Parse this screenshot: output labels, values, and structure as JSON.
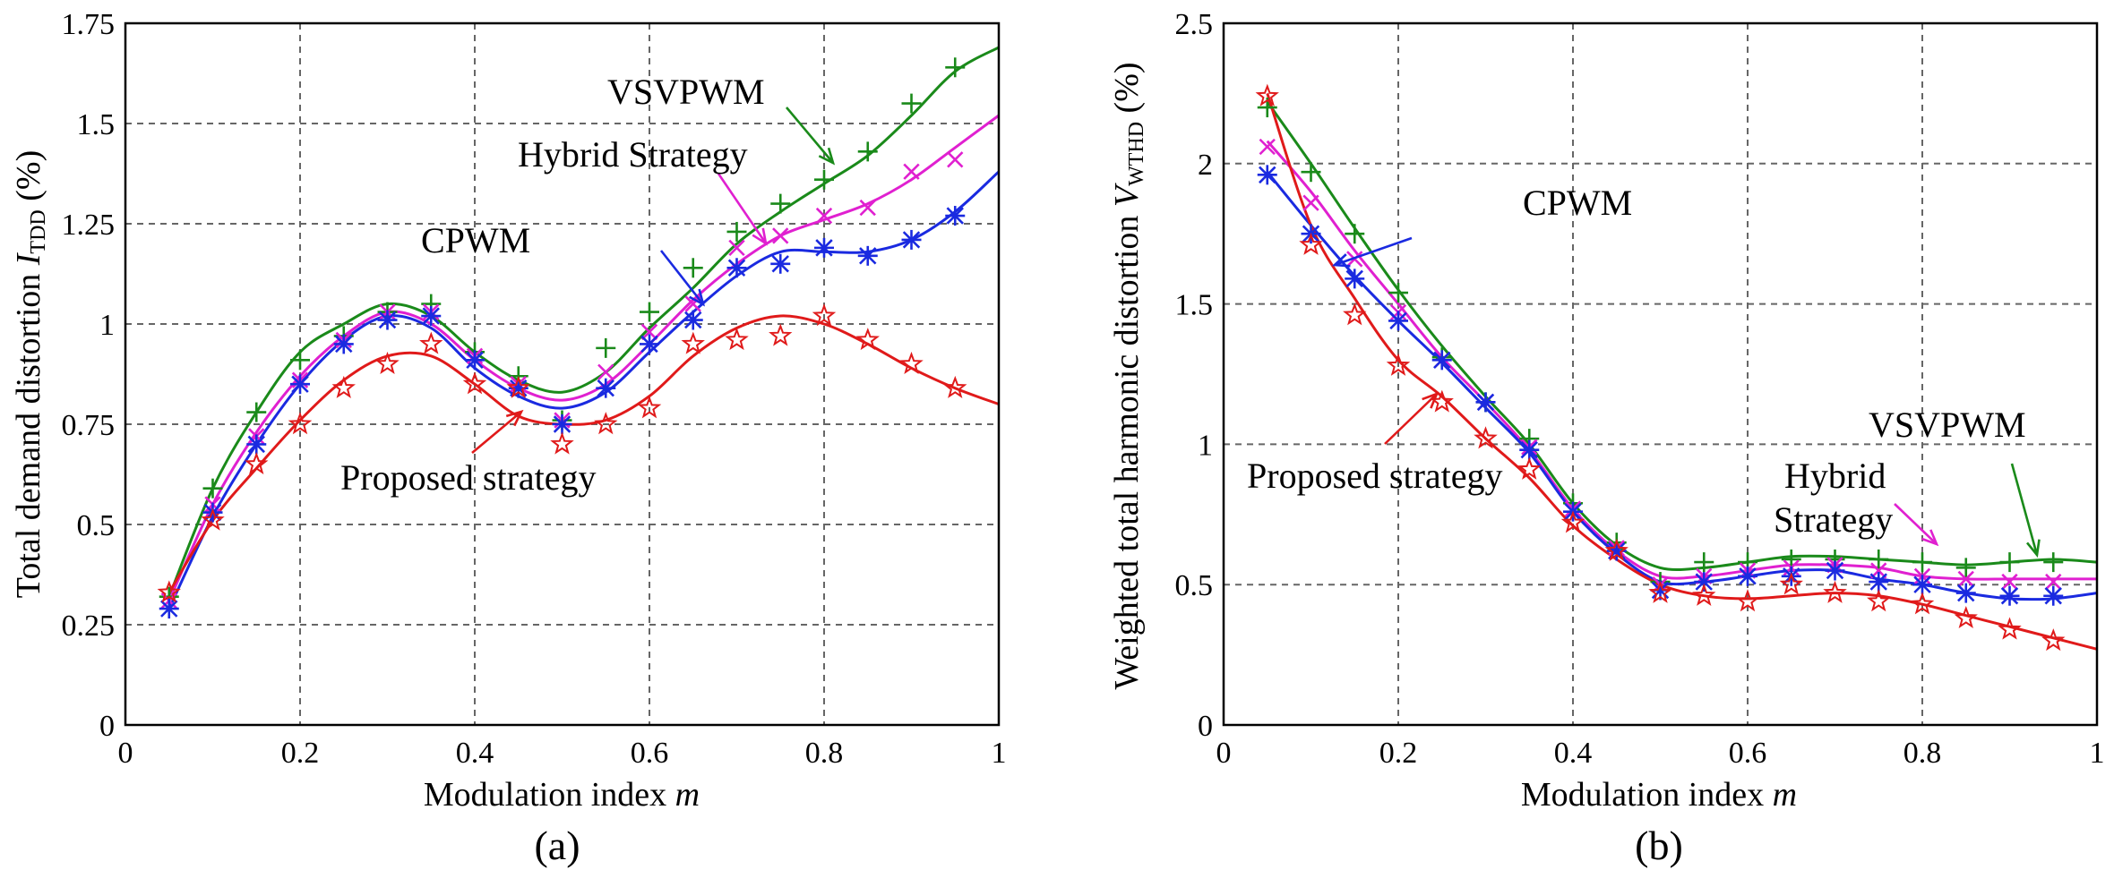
{
  "chart_data": [
    {
      "type": "line",
      "panel_label": "(a)",
      "xlabel_main": "Modulation index ",
      "xlabel_italic": "m",
      "ylabel_main": "Total demand distortion ",
      "ylabel_symbol": "I",
      "ylabel_sub": "TDD",
      "ylabel_unit": " (%)",
      "xlim": [
        0,
        1
      ],
      "ylim": [
        0,
        1.75
      ],
      "xticks": [
        0,
        0.2,
        0.4,
        0.6,
        0.8,
        1
      ],
      "xtick_labels": [
        "0",
        "0.2",
        "0.4",
        "0.6",
        "0.8",
        "1"
      ],
      "yticks": [
        0,
        0.25,
        0.5,
        0.75,
        1,
        1.25,
        1.5,
        1.75
      ],
      "ytick_labels": [
        "0",
        "0.25",
        "0.5",
        "0.75",
        "1",
        "1.25",
        "1.5",
        "1.75"
      ],
      "grid": true,
      "series": [
        {
          "name": "VSVPWM",
          "color": "#1a8a1a",
          "marker": "plus",
          "x": [
            0.05,
            0.1,
            0.15,
            0.2,
            0.25,
            0.3,
            0.35,
            0.4,
            0.45,
            0.5,
            0.55,
            0.6,
            0.65,
            0.7,
            0.75,
            0.8,
            0.85,
            0.9,
            0.95,
            1.0
          ],
          "curve": [
            0.32,
            0.59,
            0.78,
            0.93,
            1.0,
            1.05,
            1.02,
            0.93,
            0.86,
            0.83,
            0.88,
            0.99,
            1.09,
            1.2,
            1.28,
            1.35,
            1.42,
            1.52,
            1.63,
            1.69
          ],
          "markers": [
            0.32,
            0.59,
            0.78,
            0.91,
            0.97,
            1.03,
            1.05,
            0.93,
            0.87,
            0.76,
            0.94,
            1.03,
            1.14,
            1.23,
            1.3,
            1.36,
            1.43,
            1.55,
            1.64
          ]
        },
        {
          "name": "Hybrid Strategy",
          "color": "#e020d0",
          "marker": "x",
          "x": [
            0.05,
            0.1,
            0.15,
            0.2,
            0.25,
            0.3,
            0.35,
            0.4,
            0.45,
            0.5,
            0.55,
            0.6,
            0.65,
            0.7,
            0.75,
            0.8,
            0.85,
            0.9,
            0.95,
            1.0
          ],
          "curve": [
            0.31,
            0.55,
            0.73,
            0.87,
            0.97,
            1.03,
            1.0,
            0.91,
            0.84,
            0.81,
            0.85,
            0.95,
            1.06,
            1.15,
            1.22,
            1.26,
            1.3,
            1.36,
            1.44,
            1.52
          ],
          "markers": [
            0.31,
            0.55,
            0.72,
            0.86,
            0.96,
            1.03,
            1.03,
            0.92,
            0.85,
            0.76,
            0.88,
            0.98,
            1.05,
            1.19,
            1.22,
            1.27,
            1.29,
            1.38,
            1.41
          ]
        },
        {
          "name": "CPWM",
          "color": "#1a2ae0",
          "marker": "asterisk",
          "x": [
            0.05,
            0.1,
            0.15,
            0.2,
            0.25,
            0.3,
            0.35,
            0.4,
            0.45,
            0.5,
            0.55,
            0.6,
            0.65,
            0.7,
            0.75,
            0.8,
            0.85,
            0.9,
            0.95,
            1.0
          ],
          "curve": [
            0.29,
            0.52,
            0.7,
            0.85,
            0.96,
            1.02,
            0.99,
            0.89,
            0.82,
            0.79,
            0.83,
            0.93,
            1.03,
            1.12,
            1.18,
            1.18,
            1.18,
            1.21,
            1.28,
            1.38
          ],
          "markers": [
            0.29,
            0.53,
            0.7,
            0.85,
            0.95,
            1.01,
            1.02,
            0.91,
            0.84,
            0.75,
            0.84,
            0.95,
            1.01,
            1.14,
            1.15,
            1.19,
            1.17,
            1.21,
            1.27
          ]
        },
        {
          "name": "Proposed strategy",
          "color": "#e01a1a",
          "marker": "star",
          "x": [
            0.05,
            0.1,
            0.15,
            0.2,
            0.25,
            0.3,
            0.35,
            0.4,
            0.45,
            0.5,
            0.55,
            0.6,
            0.65,
            0.7,
            0.75,
            0.8,
            0.85,
            0.9,
            0.95,
            1.0
          ],
          "curve": [
            0.33,
            0.51,
            0.64,
            0.76,
            0.86,
            0.92,
            0.92,
            0.85,
            0.77,
            0.75,
            0.76,
            0.82,
            0.92,
            0.99,
            1.02,
            1.0,
            0.95,
            0.89,
            0.84,
            0.8
          ],
          "markers": [
            0.33,
            0.51,
            0.65,
            0.75,
            0.84,
            0.9,
            0.95,
            0.85,
            0.84,
            0.7,
            0.75,
            0.79,
            0.95,
            0.96,
            0.97,
            1.02,
            0.96,
            0.9,
            0.84
          ]
        }
      ],
      "annotations": [
        {
          "text": "VSVPWM",
          "color": "#1a8a1a"
        },
        {
          "text": "Hybrid Strategy",
          "color": "#e020d0"
        },
        {
          "text": "CPWM",
          "color": "#1a2ae0"
        },
        {
          "text": "Proposed strategy",
          "color": "#e01a1a"
        }
      ]
    },
    {
      "type": "line",
      "panel_label": "(b)",
      "xlabel_main": "Modulation index ",
      "xlabel_italic": "m",
      "ylabel_main": "Weighted total harmonic distortion ",
      "ylabel_symbol": "V",
      "ylabel_sub": "WTHD",
      "ylabel_unit": " (%)",
      "xlim": [
        0,
        1
      ],
      "ylim": [
        0,
        2.5
      ],
      "xticks": [
        0,
        0.2,
        0.4,
        0.6,
        0.8,
        1
      ],
      "xtick_labels": [
        "0",
        "0.2",
        "0.4",
        "0.6",
        "0.8",
        "1"
      ],
      "yticks": [
        0,
        0.5,
        1,
        1.5,
        2,
        2.5
      ],
      "ytick_labels": [
        "0",
        "0.5",
        "1",
        "1.5",
        "2",
        "2.5"
      ],
      "grid": true,
      "series": [
        {
          "name": "VSVPWM",
          "color": "#1a8a1a",
          "marker": "plus",
          "x": [
            0.05,
            0.1,
            0.15,
            0.2,
            0.25,
            0.3,
            0.35,
            0.4,
            0.45,
            0.5,
            0.55,
            0.6,
            0.65,
            0.7,
            0.75,
            0.8,
            0.85,
            0.9,
            0.95,
            1.0
          ],
          "curve": [
            2.22,
            2.0,
            1.77,
            1.55,
            1.35,
            1.17,
            1.0,
            0.79,
            0.64,
            0.56,
            0.56,
            0.58,
            0.6,
            0.6,
            0.59,
            0.58,
            0.57,
            0.58,
            0.59,
            0.58
          ],
          "markers": [
            2.2,
            1.97,
            1.75,
            1.54,
            1.31,
            1.15,
            1.02,
            0.79,
            0.65,
            0.51,
            0.58,
            0.58,
            0.59,
            0.59,
            0.59,
            0.58,
            0.56,
            0.58,
            0.58
          ]
        },
        {
          "name": "Hybrid Strategy",
          "color": "#e020d0",
          "marker": "x",
          "x": [
            0.05,
            0.1,
            0.15,
            0.2,
            0.25,
            0.3,
            0.35,
            0.4,
            0.45,
            0.5,
            0.55,
            0.6,
            0.65,
            0.7,
            0.75,
            0.8,
            0.85,
            0.9,
            0.95,
            1.0
          ],
          "curve": [
            2.08,
            1.9,
            1.69,
            1.5,
            1.31,
            1.15,
            0.98,
            0.77,
            0.62,
            0.53,
            0.53,
            0.55,
            0.57,
            0.57,
            0.56,
            0.53,
            0.52,
            0.52,
            0.52,
            0.52
          ],
          "markers": [
            2.06,
            1.86,
            1.66,
            1.47,
            1.3,
            1.15,
            0.99,
            0.77,
            0.63,
            0.5,
            0.53,
            0.55,
            0.56,
            0.57,
            0.55,
            0.53,
            0.52,
            0.51,
            0.51
          ]
        },
        {
          "name": "CPWM",
          "color": "#1a2ae0",
          "marker": "asterisk",
          "x": [
            0.05,
            0.1,
            0.15,
            0.2,
            0.25,
            0.3,
            0.35,
            0.4,
            0.45,
            0.5,
            0.55,
            0.6,
            0.65,
            0.7,
            0.75,
            0.8,
            0.85,
            0.9,
            0.95,
            1.0
          ],
          "curve": [
            1.97,
            1.78,
            1.6,
            1.44,
            1.29,
            1.13,
            0.97,
            0.76,
            0.61,
            0.51,
            0.51,
            0.53,
            0.55,
            0.55,
            0.52,
            0.5,
            0.47,
            0.45,
            0.45,
            0.47
          ],
          "markers": [
            1.96,
            1.75,
            1.59,
            1.44,
            1.3,
            1.15,
            0.98,
            0.76,
            0.62,
            0.48,
            0.51,
            0.53,
            0.53,
            0.55,
            0.51,
            0.5,
            0.47,
            0.46,
            0.46
          ]
        },
        {
          "name": "Proposed strategy",
          "color": "#e01a1a",
          "marker": "star",
          "x": [
            0.05,
            0.1,
            0.15,
            0.2,
            0.25,
            0.3,
            0.35,
            0.4,
            0.45,
            0.5,
            0.55,
            0.6,
            0.65,
            0.7,
            0.75,
            0.8,
            0.85,
            0.9,
            0.95,
            1.0
          ],
          "curve": [
            2.25,
            1.78,
            1.52,
            1.3,
            1.17,
            1.02,
            0.88,
            0.71,
            0.59,
            0.5,
            0.46,
            0.45,
            0.46,
            0.47,
            0.46,
            0.43,
            0.39,
            0.35,
            0.31,
            0.27
          ],
          "markers": [
            2.24,
            1.71,
            1.46,
            1.28,
            1.15,
            1.02,
            0.91,
            0.72,
            0.62,
            0.47,
            0.46,
            0.44,
            0.5,
            0.47,
            0.44,
            0.43,
            0.38,
            0.34,
            0.3
          ]
        }
      ],
      "annotations": [
        {
          "text": "VSVPWM",
          "color": "#1a8a1a"
        },
        {
          "text": "Hybrid",
          "color": "#e020d0"
        },
        {
          "text": "Strategy",
          "color": "#e020d0"
        },
        {
          "text": "CPWM",
          "color": "#1a2ae0"
        },
        {
          "text": "Proposed strategy",
          "color": "#e01a1a"
        }
      ]
    }
  ]
}
